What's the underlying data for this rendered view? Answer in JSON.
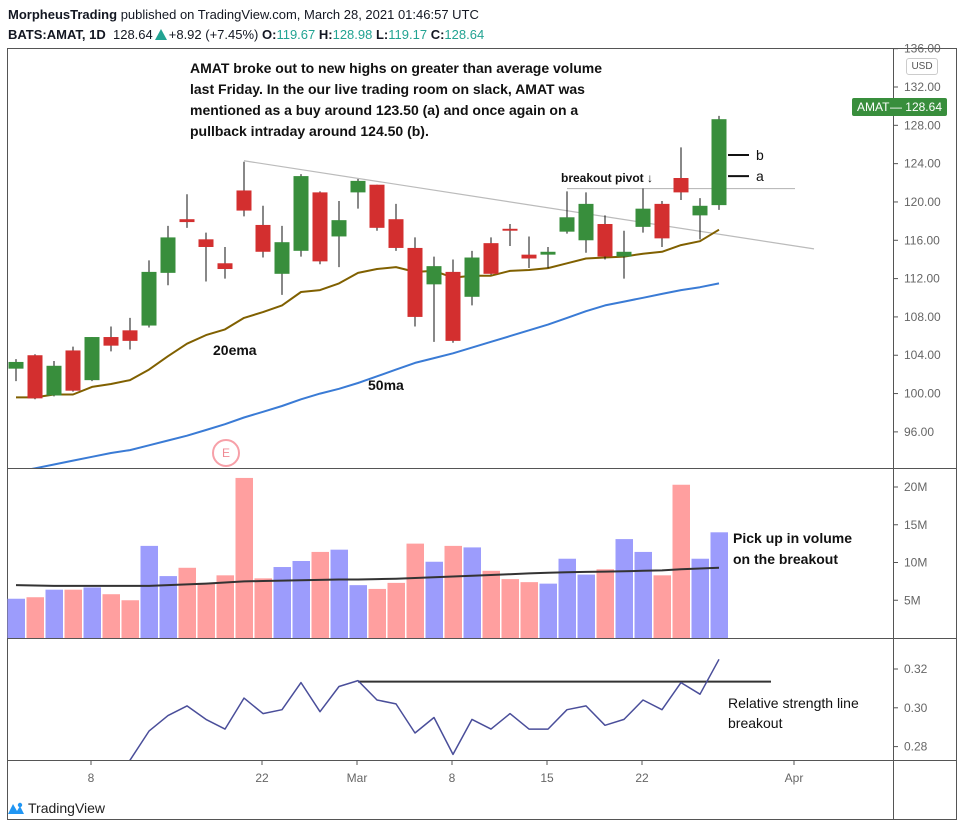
{
  "header": {
    "author": "MorpheusTrading",
    "published": "published on TradingView.com, March 28, 2021 01:46:57 UTC",
    "symbol": "BATS:AMAT, 1D",
    "last": "128.64",
    "change": "+8.92 (+7.45%)",
    "o_label": "O:",
    "o": "119.67",
    "h_label": "H:",
    "h": "128.98",
    "l_label": "L:",
    "l": "119.17",
    "c_label": "C:",
    "c": "128.64"
  },
  "price_badge": {
    "symbol": "AMAT",
    "value": "— 128.64"
  },
  "currency": "USD",
  "earnings_marker": "E",
  "annotations": {
    "note": [
      "AMAT broke out to new highs on greater than average volume",
      "last Friday.  In the our live trading room on slack, AMAT was",
      "mentioned as a buy around 123.50 (a) and once again on a",
      "pullback intraday around 124.50 (b)."
    ],
    "ema_label": "20ema",
    "ma_label": "50ma",
    "breakout": "breakout pivot ↓",
    "volume_note": [
      "Pick up in volume",
      "on the breakout"
    ],
    "rs_note": [
      "Relative strength line",
      "breakout"
    ]
  },
  "brand": "TradingView",
  "colors": {
    "up": "#388e3c",
    "down": "#d32f2f",
    "vol_up": "#9c9cfc",
    "vol_down": "#ff9f9f",
    "ema20": "#806000",
    "ma50": "#3a7bd5",
    "rs": "#4a4e9a",
    "accent": "#22a392"
  },
  "chart_data": {
    "type": "candlestick",
    "dates": [
      "2021-02-02",
      "2021-02-03",
      "2021-02-04",
      "2021-02-05",
      "2021-02-08",
      "2021-02-09",
      "2021-02-10",
      "2021-02-11",
      "2021-02-12",
      "2021-02-16",
      "2021-02-17",
      "2021-02-18",
      "2021-02-19",
      "2021-02-22",
      "2021-02-23",
      "2021-02-24",
      "2021-02-25",
      "2021-02-26",
      "2021-03-01",
      "2021-03-02",
      "2021-03-03",
      "2021-03-04",
      "2021-03-05",
      "2021-03-08",
      "2021-03-09",
      "2021-03-10",
      "2021-03-11",
      "2021-03-12",
      "2021-03-15",
      "2021-03-16",
      "2021-03-17",
      "2021-03-18",
      "2021-03-19",
      "2021-03-22",
      "2021-03-23",
      "2021-03-24",
      "2021-03-25",
      "2021-03-26"
    ],
    "future_dates": [
      "2021-03-29",
      "2021-03-30",
      "2021-03-31",
      "2021-04-01",
      "2021-04-05"
    ],
    "ohlc": [
      [
        102.6,
        103.6,
        101.3,
        103.3
      ],
      [
        104.0,
        104.1,
        99.4,
        99.5
      ],
      [
        99.8,
        103.4,
        99.7,
        102.9
      ],
      [
        104.5,
        104.9,
        100.2,
        100.3
      ],
      [
        101.4,
        105.9,
        101.3,
        105.9
      ],
      [
        105.9,
        107.0,
        104.4,
        105.0
      ],
      [
        106.6,
        107.9,
        104.6,
        105.5
      ],
      [
        107.1,
        113.9,
        106.9,
        112.7
      ],
      [
        112.6,
        117.5,
        111.3,
        116.3
      ],
      [
        118.2,
        120.8,
        117.3,
        117.9
      ],
      [
        116.1,
        116.8,
        111.7,
        115.3
      ],
      [
        113.6,
        115.3,
        112.0,
        113.0
      ],
      [
        121.2,
        124.2,
        118.5,
        119.1
      ],
      [
        117.6,
        119.6,
        114.2,
        114.8
      ],
      [
        112.5,
        117.5,
        110.3,
        115.8
      ],
      [
        114.9,
        122.9,
        114.3,
        122.7
      ],
      [
        121.0,
        121.1,
        113.5,
        113.8
      ],
      [
        116.4,
        120.1,
        113.2,
        118.1
      ],
      [
        121.0,
        122.4,
        119.3,
        122.2
      ],
      [
        121.8,
        121.8,
        117.0,
        117.3
      ],
      [
        118.2,
        119.8,
        114.9,
        115.2
      ],
      [
        115.2,
        116.3,
        107.0,
        108.0
      ],
      [
        111.4,
        114.3,
        105.4,
        113.3
      ],
      [
        112.7,
        114.0,
        105.3,
        105.5
      ],
      [
        110.1,
        114.9,
        109.2,
        114.2
      ],
      [
        115.7,
        116.3,
        112.4,
        112.5
      ],
      [
        117.2,
        117.7,
        115.4,
        117.0
      ],
      [
        114.5,
        116.4,
        113.1,
        114.1
      ],
      [
        114.5,
        115.3,
        113.1,
        114.8
      ],
      [
        116.9,
        121.1,
        116.7,
        118.4
      ],
      [
        116.0,
        121.0,
        114.7,
        119.8
      ],
      [
        117.7,
        118.6,
        114.0,
        114.3
      ],
      [
        114.3,
        117.0,
        112.0,
        114.8
      ],
      [
        117.4,
        121.4,
        116.8,
        119.3
      ],
      [
        119.8,
        120.1,
        115.3,
        116.2
      ],
      [
        122.5,
        125.7,
        120.2,
        121.0
      ],
      [
        118.6,
        120.4,
        116.1,
        119.6
      ],
      [
        119.67,
        128.98,
        119.17,
        128.64
      ]
    ],
    "ema20": [
      99.6,
      99.6,
      99.9,
      99.9,
      100.7,
      101.0,
      101.4,
      102.5,
      103.9,
      105.2,
      106.1,
      106.7,
      107.9,
      108.5,
      109.2,
      110.6,
      110.8,
      111.5,
      112.6,
      113.0,
      113.2,
      112.7,
      112.8,
      112.1,
      112.3,
      112.3,
      112.8,
      112.9,
      113.1,
      113.6,
      114.1,
      114.2,
      114.3,
      114.6,
      114.8,
      115.5,
      115.9,
      117.1
    ],
    "ma50": [
      91.8,
      92.2,
      92.6,
      93.0,
      93.4,
      93.8,
      94.1,
      94.6,
      95.1,
      95.6,
      96.2,
      96.8,
      97.5,
      98.1,
      98.7,
      99.4,
      100.0,
      100.5,
      101.1,
      101.8,
      102.5,
      103.2,
      103.7,
      104.2,
      104.8,
      105.4,
      106.0,
      106.6,
      107.2,
      107.9,
      108.6,
      109.2,
      109.6,
      110.0,
      110.4,
      110.8,
      111.1,
      111.5
    ],
    "volume_m": [
      5.2,
      5.4,
      6.4,
      6.4,
      6.7,
      5.8,
      5.0,
      12.2,
      8.2,
      9.3,
      7.3,
      8.3,
      21.2,
      7.9,
      9.4,
      10.2,
      11.4,
      11.7,
      7.0,
      6.5,
      7.3,
      12.5,
      10.1,
      12.2,
      12.0,
      8.9,
      7.8,
      7.4,
      7.2,
      10.5,
      8.4,
      9.1,
      13.1,
      11.4,
      8.3,
      20.3,
      10.5,
      14.0
    ],
    "volume_ma_m": [
      7.0,
      6.95,
      6.9,
      6.9,
      6.9,
      6.9,
      6.9,
      6.9,
      7.0,
      7.1,
      7.2,
      7.35,
      7.5,
      7.55,
      7.6,
      7.65,
      7.7,
      7.75,
      7.75,
      7.8,
      7.85,
      7.95,
      8.05,
      8.15,
      8.25,
      8.35,
      8.45,
      8.55,
      8.65,
      8.7,
      8.75,
      8.8,
      8.85,
      8.9,
      8.95,
      9.1,
      9.2,
      9.3
    ],
    "rs_line": [
      null,
      null,
      null,
      null,
      null,
      0.265,
      0.273,
      0.288,
      0.296,
      0.301,
      0.294,
      0.289,
      0.305,
      0.297,
      0.299,
      0.313,
      0.298,
      0.311,
      0.314,
      0.304,
      0.302,
      0.287,
      0.295,
      0.276,
      0.294,
      0.289,
      0.297,
      0.289,
      0.289,
      0.299,
      0.301,
      0.291,
      0.294,
      0.304,
      0.299,
      0.313,
      0.307,
      0.325
    ],
    "rs_resistance": {
      "from": "2021-03-01",
      "to": "2021-04-01",
      "value": 0.3135
    },
    "trendlines": [
      {
        "from": "2021-02-19",
        "from_price": 124.3,
        "to": "2021-04-05",
        "to_price": 115.1
      },
      {
        "from": "2021-03-16",
        "from_price": 121.4,
        "to": "2021-04-01",
        "to_price": 121.4
      }
    ],
    "entry_marks": [
      {
        "label": "b",
        "price": 124.9
      },
      {
        "label": "a",
        "price": 122.7
      }
    ],
    "price_ticks": [
      "96.00",
      "100.00",
      "104.00",
      "108.00",
      "112.00",
      "116.00",
      "120.00",
      "124.00",
      "128.00",
      "132.00",
      "136.00"
    ],
    "volume_ticks": [
      "5M",
      "10M",
      "15M",
      "20M"
    ],
    "rs_ticks": [
      "0.28",
      "0.30",
      "0.32"
    ],
    "x_ticks": [
      {
        "label": "8",
        "date": "2021-02-08"
      },
      {
        "label": "22",
        "date": "2021-02-22"
      },
      {
        "label": "Mar",
        "date": "2021-03-01"
      },
      {
        "label": "8",
        "date": "2021-03-08"
      },
      {
        "label": "15",
        "date": "2021-03-15"
      },
      {
        "label": "22",
        "date": "2021-03-22"
      },
      {
        "label": "Apr",
        "date": "2021-04-01"
      }
    ]
  }
}
